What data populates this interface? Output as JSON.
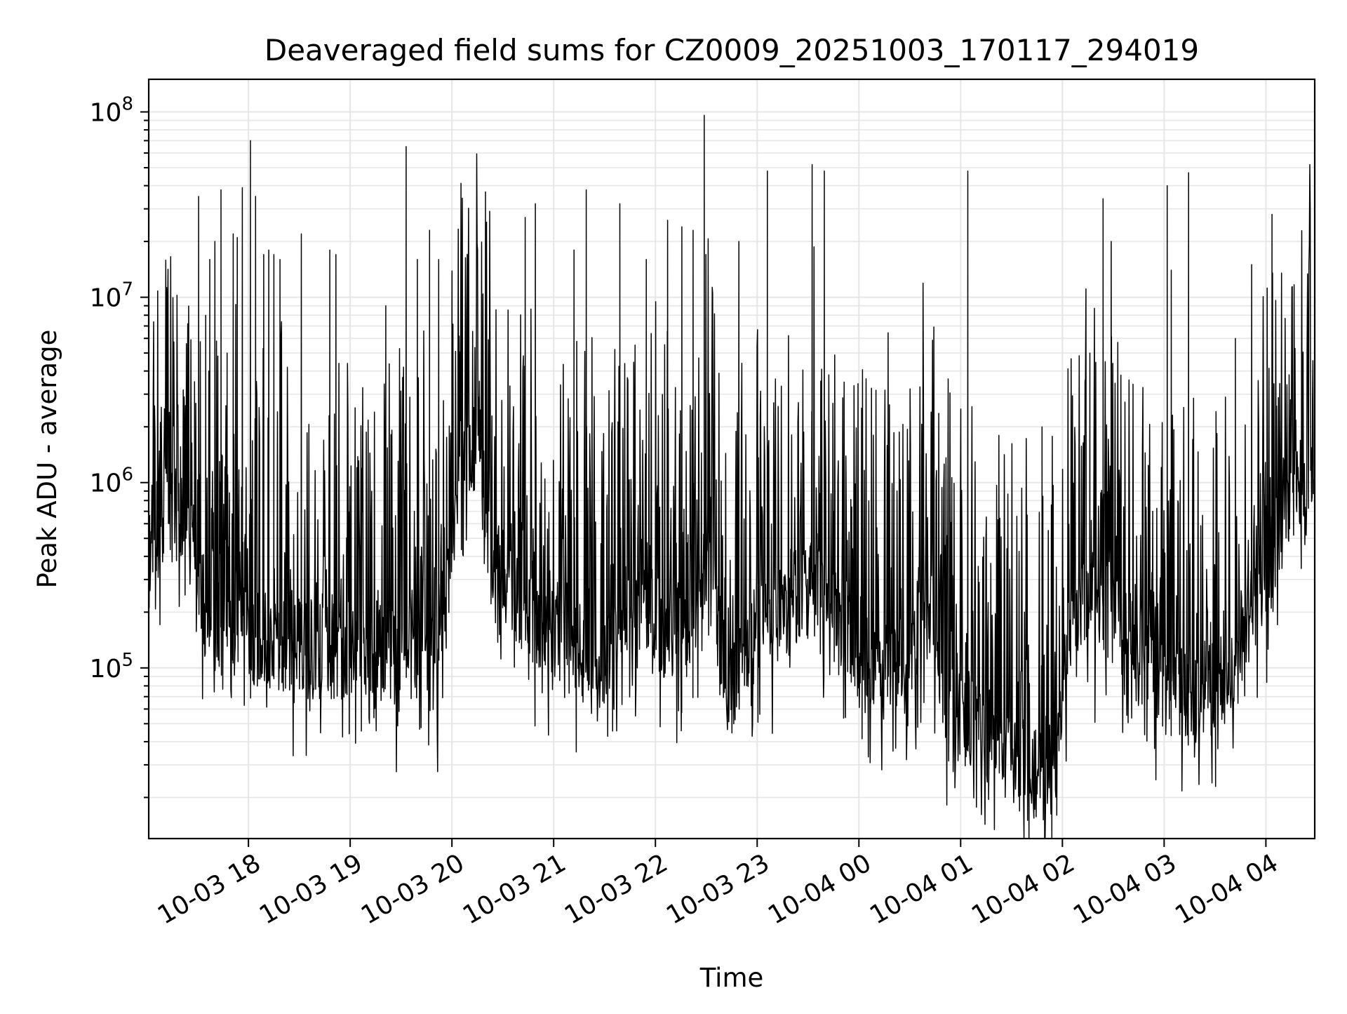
{
  "chart_data": {
    "type": "line",
    "title": "Deaveraged field sums for CZ0009_20251003_170117_294019",
    "xlabel": "Time",
    "ylabel": "Peak ADU - average",
    "yscale": "log",
    "ylim": [
      12000,
      150000000
    ],
    "x_range_hours": [
      17.02,
      28.48
    ],
    "x_ticks": [
      {
        "label": "10-03 18",
        "hour": 18
      },
      {
        "label": "10-03 19",
        "hour": 19
      },
      {
        "label": "10-03 20",
        "hour": 20
      },
      {
        "label": "10-03 21",
        "hour": 21
      },
      {
        "label": "10-03 22",
        "hour": 22
      },
      {
        "label": "10-03 23",
        "hour": 23
      },
      {
        "label": "10-04 00",
        "hour": 24
      },
      {
        "label": "10-04 01",
        "hour": 25
      },
      {
        "label": "10-04 02",
        "hour": 26
      },
      {
        "label": "10-04 03",
        "hour": 27
      },
      {
        "label": "10-04 04",
        "hour": 28
      }
    ],
    "y_ticks": [
      {
        "base": "10",
        "exp": "5",
        "value": 100000
      },
      {
        "base": "10",
        "exp": "6",
        "value": 1000000
      },
      {
        "base": "10",
        "exp": "7",
        "value": 10000000
      },
      {
        "base": "10",
        "exp": "8",
        "value": 100000000
      }
    ],
    "grid": true,
    "series": [
      {
        "name": "deaveraged field sum",
        "color": "#000000",
        "baseline_knots": [
          [
            17.02,
            600000
          ],
          [
            17.35,
            700000
          ],
          [
            17.45,
            450000
          ],
          [
            17.6,
            180000
          ],
          [
            17.9,
            150000
          ],
          [
            18.4,
            140000
          ],
          [
            18.8,
            120000
          ],
          [
            19.2,
            130000
          ],
          [
            19.5,
            110000
          ],
          [
            19.9,
            110000
          ],
          [
            20.05,
            1000000
          ],
          [
            20.25,
            1800000
          ],
          [
            20.4,
            350000
          ],
          [
            20.8,
            200000
          ],
          [
            21.2,
            130000
          ],
          [
            21.5,
            90000
          ],
          [
            21.7,
            200000
          ],
          [
            22.0,
            180000
          ],
          [
            22.3,
            130000
          ],
          [
            22.55,
            500000
          ],
          [
            22.7,
            70000
          ],
          [
            22.9,
            130000
          ],
          [
            23.3,
            220000
          ],
          [
            23.6,
            280000
          ],
          [
            23.9,
            150000
          ],
          [
            24.3,
            90000
          ],
          [
            24.55,
            120000
          ],
          [
            24.65,
            220000
          ],
          [
            24.8,
            70000
          ],
          [
            25.2,
            45000
          ],
          [
            25.6,
            28000
          ],
          [
            25.95,
            30000
          ],
          [
            26.1,
            250000
          ],
          [
            26.5,
            200000
          ],
          [
            26.8,
            100000
          ],
          [
            27.0,
            90000
          ],
          [
            27.3,
            70000
          ],
          [
            27.6,
            80000
          ],
          [
            27.9,
            250000
          ],
          [
            28.1,
            450000
          ],
          [
            28.2,
            900000
          ],
          [
            28.48,
            850000
          ]
        ],
        "spikes": [
          [
            17.47,
            3500000
          ],
          [
            17.51,
            35000000
          ],
          [
            17.58,
            8000000
          ],
          [
            17.62,
            16000000
          ],
          [
            17.67,
            20000000
          ],
          [
            17.73,
            38000000
          ],
          [
            17.79,
            5000000
          ],
          [
            17.85,
            22000000
          ],
          [
            17.89,
            21000000
          ],
          [
            17.94,
            39000000
          ],
          [
            18.02,
            70000000
          ],
          [
            18.07,
            35000000
          ],
          [
            18.15,
            17000000
          ],
          [
            18.2,
            18000000
          ],
          [
            18.25,
            17000000
          ],
          [
            18.31,
            16000000
          ],
          [
            18.52,
            22000000
          ],
          [
            18.8,
            18000000
          ],
          [
            18.86,
            17000000
          ],
          [
            19.35,
            9000000
          ],
          [
            19.55,
            65000000
          ],
          [
            19.66,
            16000000
          ],
          [
            19.78,
            23000000
          ],
          [
            19.87,
            16000000
          ],
          [
            20.0,
            9000000
          ],
          [
            20.33,
            37000000
          ],
          [
            20.72,
            27000000
          ],
          [
            20.82,
            32000000
          ],
          [
            21.2,
            18000000
          ],
          [
            21.32,
            38000000
          ],
          [
            21.65,
            32000000
          ],
          [
            21.91,
            16000000
          ],
          [
            22.12,
            26000000
          ],
          [
            22.26,
            24000000
          ],
          [
            22.37,
            23000000
          ],
          [
            22.48,
            96000000
          ],
          [
            22.82,
            20000000
          ],
          [
            23.1,
            48000000
          ],
          [
            23.54,
            52000000
          ],
          [
            23.66,
            48000000
          ],
          [
            25.07,
            48000000
          ],
          [
            25.8,
            2000000
          ],
          [
            26.27,
            5000000
          ],
          [
            26.4,
            34000000
          ],
          [
            26.48,
            20000000
          ],
          [
            27.03,
            40000000
          ],
          [
            27.07,
            14000000
          ],
          [
            27.24,
            47000000
          ],
          [
            27.7,
            6000000
          ],
          [
            27.86,
            15000000
          ],
          [
            28.06,
            28000000
          ]
        ]
      }
    ]
  }
}
